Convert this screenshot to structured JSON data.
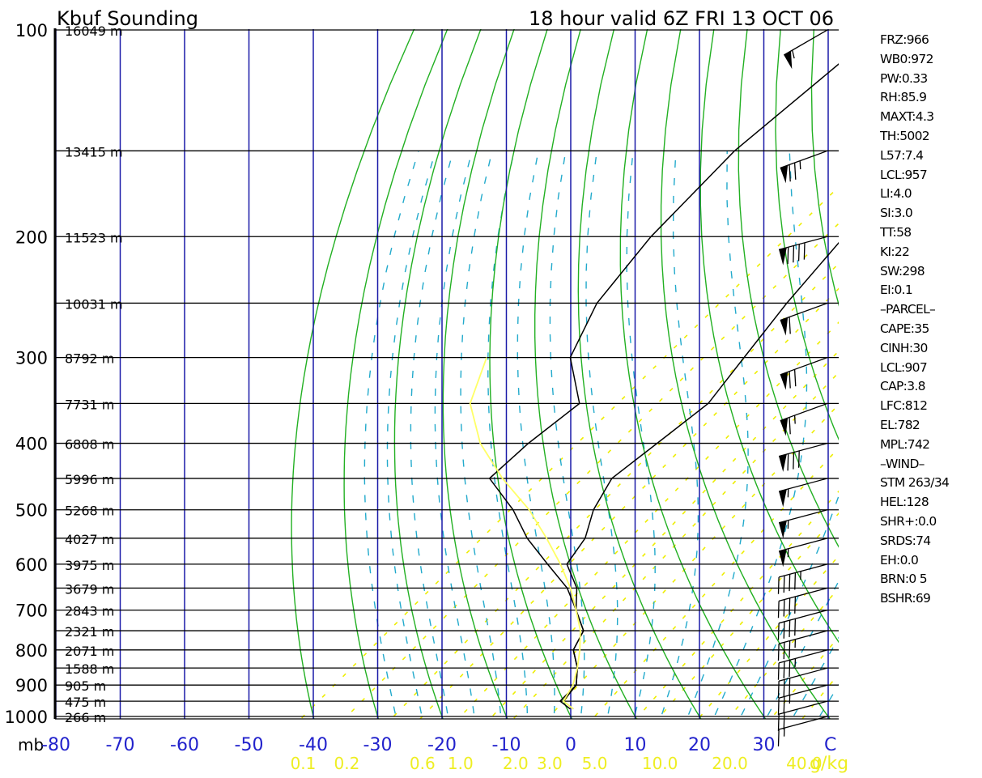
{
  "title_left": "Kbuf Sounding",
  "title_right": "18 hour   valid 6Z FRI 13 OCT 06",
  "chart_data": {
    "type": "skew-t",
    "pressure_unit_label": "mb",
    "temperature_unit_label": "C",
    "mixing_unit_label": "g/kg",
    "pressure_levels": [
      {
        "p": 100,
        "height": "16049 m",
        "label": "100"
      },
      {
        "p": 150,
        "height": "13415 m"
      },
      {
        "p": 200,
        "height": "11523 m",
        "label": "200"
      },
      {
        "p": 250,
        "height": "10031 m"
      },
      {
        "p": 300,
        "height": "8792 m",
        "label": "300"
      },
      {
        "p": 350,
        "height": "7731 m"
      },
      {
        "p": 400,
        "height": "6808 m",
        "label": "400"
      },
      {
        "p": 450,
        "height": "5996 m"
      },
      {
        "p": 500,
        "height": "5268 m",
        "label": "500"
      },
      {
        "p": 550,
        "height": "4027 m"
      },
      {
        "p": 600,
        "height": "3975 m",
        "label": "600"
      },
      {
        "p": 650,
        "height": "3679 m"
      },
      {
        "p": 700,
        "height": "2843 m",
        "label": "700"
      },
      {
        "p": 750,
        "height": "2321 m"
      },
      {
        "p": 800,
        "height": "2071 m",
        "label": "800"
      },
      {
        "p": 850,
        "height": "1588 m"
      },
      {
        "p": 900,
        "height": "905 m",
        "label": "900"
      },
      {
        "p": 950,
        "height": "475 m"
      },
      {
        "p": 1000,
        "height": "266 m",
        "label": "1000"
      }
    ],
    "temperature_ticks": [
      "-80",
      "-70",
      "-60",
      "-50",
      "-40",
      "-30",
      "-20",
      "-10",
      "0",
      "10",
      "20",
      "30"
    ],
    "mixing_ratio_ticks": [
      "0.1",
      "0.2",
      "0.6",
      "1.0",
      "2.0",
      "3.0",
      "5.0",
      "10.0",
      "20.0",
      "40.0"
    ],
    "series": [
      {
        "name": "",
        "kind": "temperature",
        "points": [
          [
            100,
            -50
          ],
          [
            150,
            -50
          ],
          [
            200,
            -47
          ],
          [
            250,
            -43.5
          ],
          [
            300,
            -40
          ],
          [
            350,
            -37
          ],
          [
            400,
            -37.5
          ],
          [
            450,
            -38
          ],
          [
            500,
            -35
          ],
          [
            550,
            -31
          ],
          [
            600,
            -29
          ],
          [
            650,
            -23
          ],
          [
            700,
            -19
          ],
          [
            750,
            -14
          ],
          [
            800,
            -12
          ],
          [
            850,
            -8
          ],
          [
            900,
            -5
          ],
          [
            950,
            -4
          ],
          [
            975,
            -1
          ]
        ]
      },
      {
        "name": "",
        "kind": "dewpoint",
        "points": [
          [
            100,
            -80
          ],
          [
            150,
            -80
          ],
          [
            200,
            -77
          ],
          [
            250,
            -73
          ],
          [
            300,
            -67
          ],
          [
            350,
            -57
          ],
          [
            400,
            -57.5
          ],
          [
            450,
            -57
          ],
          [
            500,
            -47.5
          ],
          [
            550,
            -40
          ],
          [
            600,
            -32
          ],
          [
            650,
            -24.5
          ],
          [
            700,
            -19
          ],
          [
            750,
            -14
          ],
          [
            800,
            -12
          ],
          [
            850,
            -8
          ],
          [
            900,
            -5
          ],
          [
            950,
            -4.5
          ],
          [
            975,
            -1.5
          ]
        ]
      },
      {
        "name": "",
        "kind": "parcel",
        "points": [
          [
            975,
            -1
          ],
          [
            950,
            -4
          ],
          [
            900,
            -5.5
          ],
          [
            850,
            -8
          ],
          [
            800,
            -11
          ],
          [
            750,
            -14.5
          ],
          [
            700,
            -19
          ],
          [
            650,
            -24
          ],
          [
            600,
            -30
          ],
          [
            550,
            -37
          ],
          [
            500,
            -45
          ],
          [
            450,
            -55
          ],
          [
            400,
            -65
          ],
          [
            350,
            -74
          ],
          [
            300,
            -80
          ]
        ]
      }
    ],
    "winds": [
      {
        "p": 100,
        "dir": 300,
        "speed": 55
      },
      {
        "p": 150,
        "dir": 290,
        "speed": 75
      },
      {
        "p": 200,
        "dir": 285,
        "speed": 90
      },
      {
        "p": 250,
        "dir": 290,
        "speed": 60
      },
      {
        "p": 300,
        "dir": 290,
        "speed": 70
      },
      {
        "p": 350,
        "dir": 290,
        "speed": 65
      },
      {
        "p": 400,
        "dir": 285,
        "speed": 80
      },
      {
        "p": 450,
        "dir": 285,
        "speed": 55
      },
      {
        "p": 500,
        "dir": 285,
        "speed": 55
      },
      {
        "p": 550,
        "dir": 285,
        "speed": 55
      },
      {
        "p": 600,
        "dir": 285,
        "speed": 45
      },
      {
        "p": 650,
        "dir": 285,
        "speed": 40
      },
      {
        "p": 700,
        "dir": 285,
        "speed": 40
      },
      {
        "p": 750,
        "dir": 285,
        "speed": 35
      },
      {
        "p": 800,
        "dir": 285,
        "speed": 35
      },
      {
        "p": 850,
        "dir": 285,
        "speed": 30
      },
      {
        "p": 900,
        "dir": 285,
        "speed": 25
      },
      {
        "p": 950,
        "dir": 285,
        "speed": 20
      },
      {
        "p": 1000,
        "dir": 285,
        "speed": 15
      }
    ],
    "colors": {
      "isobar": "#000000",
      "isotherm": "#1a1aa8",
      "dry_adiabat": "#22b022",
      "moist_adiabat": "#22aacc",
      "mixing_ratio": "#eeee00",
      "temperature": "#000000",
      "dewpoint": "#000000",
      "parcel": "#ffff66",
      "tick_labels_temp": "#2222cc",
      "tick_labels_mixing": "#eeee22"
    }
  },
  "stats": [
    "FRZ:966",
    "WB0:972",
    "PW:0.33",
    "RH:85.9",
    "MAXT:4.3",
    "TH:5002",
    "L57:7.4",
    "LCL:957",
    "LI:4.0",
    "SI:3.0",
    "TT:58",
    "KI:22",
    "SW:298",
    "EI:0.1",
    "–PARCEL–",
    "CAPE:35",
    "CINH:30",
    "LCL:907",
    "CAP:3.8",
    "LFC:812",
    "EL:782",
    "MPL:742",
    "–WIND–",
    "STM 263/34",
    "HEL:128",
    "SHR+:0.0",
    "SRDS:74",
    "EH:0.0",
    "BRN:0 5",
    "BSHR:69"
  ]
}
